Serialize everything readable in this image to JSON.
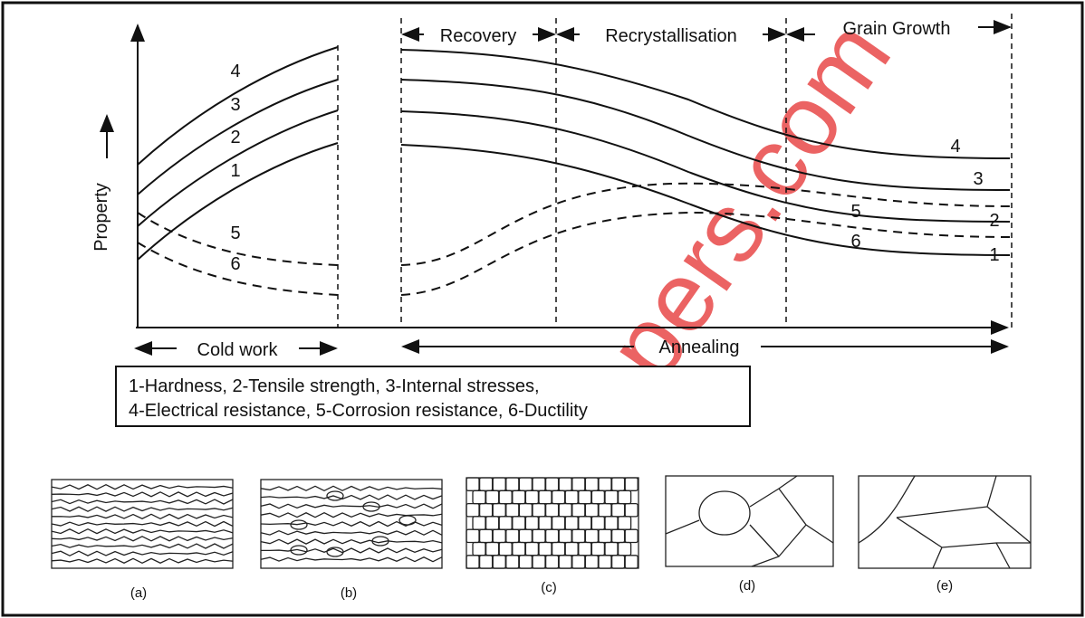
{
  "axis_label": "Property",
  "stages": {
    "recovery": "Recovery",
    "recrystallisation": "Recrystallisation",
    "grain_growth": "Grain Growth",
    "cold_work": "Cold work",
    "annealing": "Annealing"
  },
  "curve_labels_cold_work": [
    "4",
    "3",
    "2",
    "1",
    "5",
    "6"
  ],
  "curve_labels_annealing": [
    "4",
    "3",
    "5",
    "2",
    "6",
    "1"
  ],
  "legend": [
    "1-Hardness, 2-Tensile strength, 3-Internal stresses,",
    "4-Electrical resistance, 5-Corrosion resistance, 6-Ductility"
  ],
  "microstructures": [
    "(a)",
    "(b)",
    "(c)",
    "(d)",
    "(e)"
  ],
  "watermark": "apers.com"
}
